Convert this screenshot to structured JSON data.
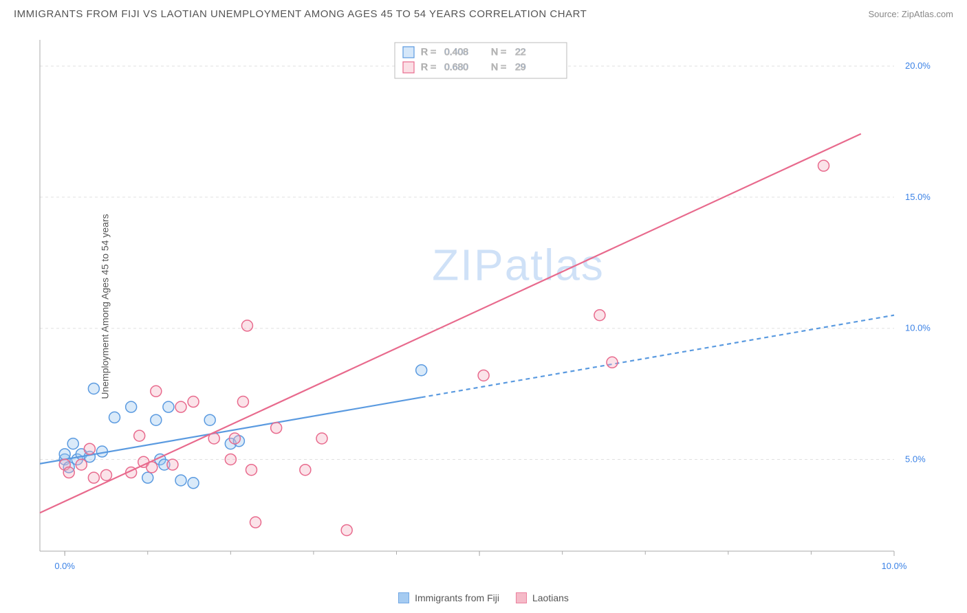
{
  "title": "IMMIGRANTS FROM FIJI VS LAOTIAN UNEMPLOYMENT AMONG AGES 45 TO 54 YEARS CORRELATION CHART",
  "source": "Source: ZipAtlas.com",
  "y_axis_label": "Unemployment Among Ages 45 to 54 years",
  "watermark": "ZIPatlas",
  "chart": {
    "type": "scatter",
    "xlim": [
      -0.3,
      10.0
    ],
    "ylim": [
      1.5,
      21.0
    ],
    "xticks": [
      0.0,
      5.0,
      10.0
    ],
    "xtick_labels": [
      "0.0%",
      "",
      "10.0%"
    ],
    "yticks": [
      5.0,
      10.0,
      15.0,
      20.0
    ],
    "ytick_labels": [
      "5.0%",
      "10.0%",
      "15.0%",
      "20.0%"
    ],
    "background_color": "#ffffff",
    "grid_color": "#e0e0e0",
    "axis_color": "#aaaaaa",
    "tick_label_color": "#3b82e6",
    "marker_radius": 8,
    "marker_fill_opacity": 0.35,
    "series": [
      {
        "name": "Immigrants from Fiji",
        "color_stroke": "#5a9ae0",
        "color_fill": "#96c2ef",
        "R": "0.408",
        "N": "22",
        "trend": {
          "slope": 0.55,
          "intercept": 5.0,
          "x_solid_max": 4.3,
          "x_dash_max": 10.0
        },
        "points": [
          [
            0.0,
            5.0
          ],
          [
            0.0,
            5.2
          ],
          [
            0.05,
            4.7
          ],
          [
            0.1,
            5.6
          ],
          [
            0.15,
            5.0
          ],
          [
            0.2,
            5.2
          ],
          [
            0.3,
            5.1
          ],
          [
            0.35,
            7.7
          ],
          [
            0.45,
            5.3
          ],
          [
            0.6,
            6.6
          ],
          [
            0.8,
            7.0
          ],
          [
            1.0,
            4.3
          ],
          [
            1.1,
            6.5
          ],
          [
            1.15,
            5.0
          ],
          [
            1.2,
            4.8
          ],
          [
            1.25,
            7.0
          ],
          [
            1.4,
            4.2
          ],
          [
            1.55,
            4.1
          ],
          [
            1.75,
            6.5
          ],
          [
            2.0,
            5.6
          ],
          [
            2.1,
            5.7
          ],
          [
            4.3,
            8.4
          ]
        ]
      },
      {
        "name": "Laotians",
        "color_stroke": "#e86a8d",
        "color_fill": "#f4aebf",
        "R": "0.680",
        "N": "29",
        "trend": {
          "slope": 1.46,
          "intercept": 3.4,
          "x_solid_max": 9.6,
          "x_dash_max": 9.6
        },
        "points": [
          [
            0.0,
            4.8
          ],
          [
            0.05,
            4.5
          ],
          [
            0.2,
            4.8
          ],
          [
            0.3,
            5.4
          ],
          [
            0.35,
            4.3
          ],
          [
            0.5,
            4.4
          ],
          [
            0.8,
            4.5
          ],
          [
            0.9,
            5.9
          ],
          [
            0.95,
            4.9
          ],
          [
            1.05,
            4.7
          ],
          [
            1.1,
            7.6
          ],
          [
            1.3,
            4.8
          ],
          [
            1.4,
            7.0
          ],
          [
            1.55,
            7.2
          ],
          [
            1.8,
            5.8
          ],
          [
            2.0,
            5.0
          ],
          [
            2.05,
            5.8
          ],
          [
            2.15,
            7.2
          ],
          [
            2.2,
            10.1
          ],
          [
            2.25,
            4.6
          ],
          [
            2.3,
            2.6
          ],
          [
            2.55,
            6.2
          ],
          [
            2.9,
            4.6
          ],
          [
            3.1,
            5.8
          ],
          [
            3.4,
            2.3
          ],
          [
            5.05,
            8.2
          ],
          [
            6.45,
            10.5
          ],
          [
            6.6,
            8.7
          ],
          [
            9.15,
            16.2
          ]
        ]
      }
    ]
  },
  "legend_top": {
    "R_label": "R =",
    "N_label": "N ="
  }
}
